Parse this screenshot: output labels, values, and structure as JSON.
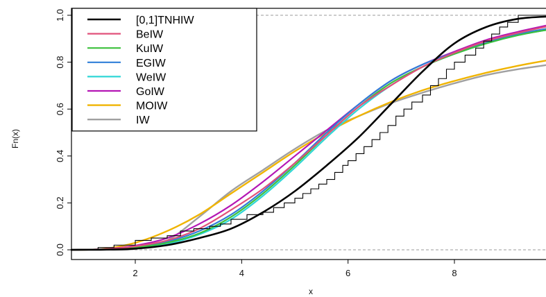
{
  "chart_data": {
    "type": "line",
    "xlabel": "x",
    "ylabel": "Fn(x)",
    "xlim": [
      0.8,
      9.8
    ],
    "ylim": [
      0.0,
      1.0
    ],
    "xticks": [
      "2",
      "4",
      "6",
      "8"
    ],
    "yticks": [
      "0.0",
      "0.2",
      "0.4",
      "0.6",
      "0.8",
      "1.0"
    ],
    "xtick_values": [
      2,
      4,
      6,
      8
    ],
    "ytick_values": [
      0.0,
      0.2,
      0.4,
      0.6,
      0.8,
      1.0
    ],
    "reference_lines_y": [
      0.0,
      1.0
    ],
    "legend_position": "top-left",
    "x": [
      0.8,
      1.4,
      2.0,
      2.6,
      3.2,
      3.8,
      4.4,
      5.0,
      5.6,
      6.2,
      6.8,
      7.4,
      8.0,
      8.6,
      9.2,
      9.8
    ],
    "series": [
      {
        "name": "[0,1]TNHIW",
        "color": "#000000",
        "width": 2.6,
        "values": [
          0.0,
          0.001,
          0.005,
          0.02,
          0.05,
          0.09,
          0.16,
          0.25,
          0.36,
          0.48,
          0.62,
          0.76,
          0.88,
          0.95,
          0.985,
          0.995
        ]
      },
      {
        "name": "BeIW",
        "color": "#e0507a",
        "width": 2.2,
        "values": [
          0.0,
          0.002,
          0.015,
          0.04,
          0.09,
          0.17,
          0.26,
          0.37,
          0.49,
          0.61,
          0.7,
          0.78,
          0.84,
          0.89,
          0.925,
          0.955
        ]
      },
      {
        "name": "KuIW",
        "color": "#3cc03c",
        "width": 2.2,
        "values": [
          0.0,
          0.002,
          0.01,
          0.03,
          0.07,
          0.14,
          0.24,
          0.36,
          0.49,
          0.61,
          0.71,
          0.78,
          0.835,
          0.88,
          0.915,
          0.94
        ]
      },
      {
        "name": "EGIW",
        "color": "#2f7fd8",
        "width": 2.2,
        "values": [
          0.0,
          0.002,
          0.012,
          0.035,
          0.08,
          0.15,
          0.25,
          0.37,
          0.5,
          0.62,
          0.72,
          0.79,
          0.84,
          0.885,
          0.92,
          0.945
        ]
      },
      {
        "name": "WeIW",
        "color": "#2ed6d6",
        "width": 2.2,
        "values": [
          0.0,
          0.001,
          0.008,
          0.025,
          0.065,
          0.13,
          0.23,
          0.35,
          0.48,
          0.6,
          0.7,
          0.78,
          0.835,
          0.88,
          0.915,
          0.94
        ]
      },
      {
        "name": "GoIW",
        "color": "#b416b4",
        "width": 2.2,
        "values": [
          0.0,
          0.003,
          0.018,
          0.05,
          0.11,
          0.19,
          0.29,
          0.4,
          0.51,
          0.62,
          0.72,
          0.79,
          0.845,
          0.895,
          0.93,
          0.96
        ]
      },
      {
        "name": "MOIW",
        "color": "#f0b400",
        "width": 2.4,
        "values": [
          0.0,
          0.004,
          0.03,
          0.08,
          0.15,
          0.24,
          0.33,
          0.42,
          0.5,
          0.57,
          0.63,
          0.68,
          0.72,
          0.755,
          0.785,
          0.81
        ]
      },
      {
        "name": "IW",
        "color": "#a0a0a0",
        "width": 2.4,
        "values": [
          0.0,
          0.0,
          0.004,
          0.04,
          0.14,
          0.25,
          0.34,
          0.43,
          0.51,
          0.57,
          0.625,
          0.67,
          0.71,
          0.745,
          0.77,
          0.79
        ]
      }
    ],
    "empirical_cdf": {
      "name": "Fn(x)",
      "color": "#000000",
      "steps": [
        [
          1.3,
          0.01
        ],
        [
          1.6,
          0.02
        ],
        [
          2.0,
          0.04
        ],
        [
          2.3,
          0.05
        ],
        [
          2.6,
          0.06
        ],
        [
          2.85,
          0.08
        ],
        [
          3.1,
          0.09
        ],
        [
          3.4,
          0.1
        ],
        [
          3.6,
          0.11
        ],
        [
          3.8,
          0.13
        ],
        [
          4.1,
          0.15
        ],
        [
          4.4,
          0.16
        ],
        [
          4.6,
          0.18
        ],
        [
          4.8,
          0.2
        ],
        [
          5.0,
          0.22
        ],
        [
          5.15,
          0.24
        ],
        [
          5.3,
          0.26
        ],
        [
          5.45,
          0.28
        ],
        [
          5.6,
          0.3
        ],
        [
          5.75,
          0.33
        ],
        [
          5.9,
          0.36
        ],
        [
          6.0,
          0.38
        ],
        [
          6.15,
          0.41
        ],
        [
          6.3,
          0.44
        ],
        [
          6.45,
          0.47
        ],
        [
          6.6,
          0.5
        ],
        [
          6.75,
          0.53
        ],
        [
          6.9,
          0.57
        ],
        [
          7.05,
          0.6
        ],
        [
          7.2,
          0.63
        ],
        [
          7.4,
          0.66
        ],
        [
          7.55,
          0.7
        ],
        [
          7.7,
          0.73
        ],
        [
          7.85,
          0.77
        ],
        [
          8.0,
          0.8
        ],
        [
          8.2,
          0.83
        ],
        [
          8.4,
          0.86
        ],
        [
          8.55,
          0.89
        ],
        [
          8.7,
          0.92
        ],
        [
          8.85,
          0.95
        ],
        [
          9.0,
          0.97
        ],
        [
          9.2,
          1.0
        ]
      ],
      "end_x": 9.8
    }
  }
}
